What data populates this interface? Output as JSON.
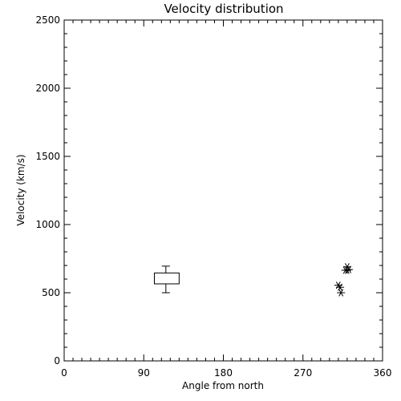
{
  "chart_data": {
    "type": "scatter",
    "title": "Velocity distribution",
    "xlabel": "Angle from north",
    "ylabel": "Velocity (km/s)",
    "xlim": [
      0,
      360
    ],
    "ylim": [
      0,
      2500
    ],
    "xticks": [
      "0",
      "90",
      "180",
      "270",
      "360"
    ],
    "yticks": [
      "0",
      "500",
      "1000",
      "1500",
      "2000",
      "2500"
    ],
    "grid": false,
    "box": {
      "x_from": 102,
      "x_to": 130,
      "whisker_x": 115,
      "low": 500,
      "q1": 565,
      "q3": 645,
      "high": 695
    },
    "points": [
      {
        "x": 310,
        "y": 555
      },
      {
        "x": 312,
        "y": 540
      },
      {
        "x": 313,
        "y": 500
      },
      {
        "x": 318,
        "y": 665
      },
      {
        "x": 320,
        "y": 690
      },
      {
        "x": 322,
        "y": 670
      },
      {
        "x": 320,
        "y": 665
      }
    ]
  }
}
